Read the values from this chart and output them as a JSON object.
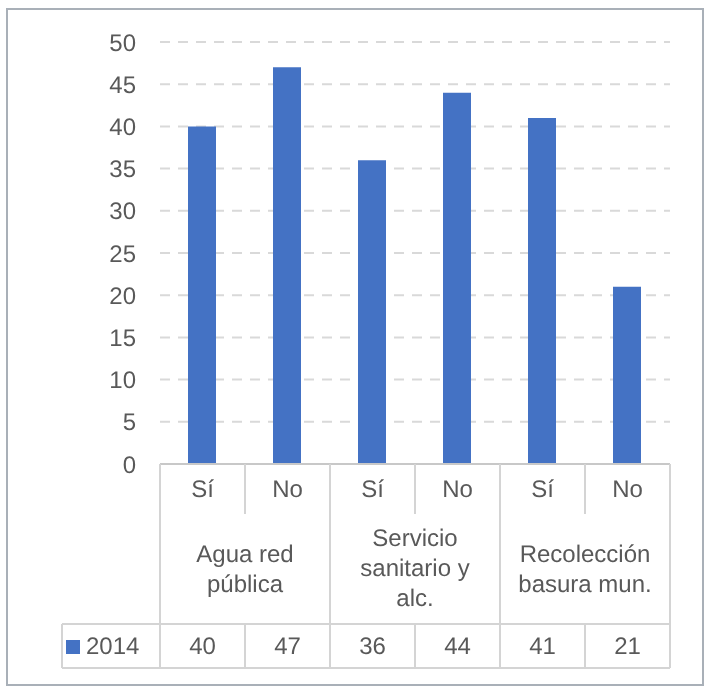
{
  "chart_data": {
    "type": "bar",
    "categories": [
      "Sí",
      "No",
      "Sí",
      "No",
      "Sí",
      "No"
    ],
    "series": [
      {
        "name": "2014",
        "color": "#4472c4",
        "values": [
          40,
          47,
          36,
          44,
          41,
          21
        ]
      }
    ],
    "ylim": [
      0,
      50
    ],
    "yticks": [
      0,
      5,
      10,
      15,
      20,
      25,
      30,
      35,
      40,
      45,
      50
    ],
    "grid": "y",
    "legend": "bottom",
    "data_labels": true,
    "annotations": [
      "Agua red pública",
      "Servicio sanitario y alc.",
      "Recolección basura mun."
    ]
  }
}
